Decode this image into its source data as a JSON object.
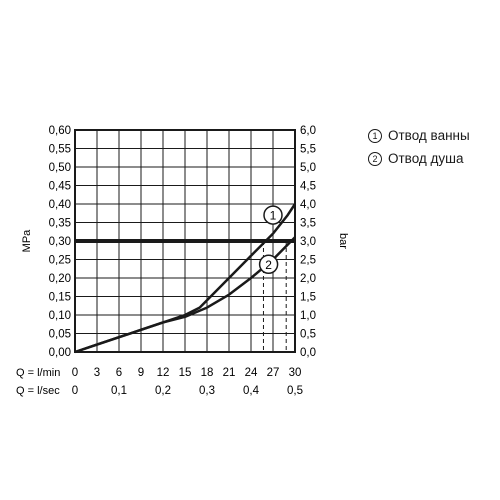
{
  "chart_data": {
    "type": "line",
    "left_axis": {
      "label": "MPa",
      "ticks": [
        "0,00",
        "0,05",
        "0,10",
        "0,15",
        "0,20",
        "0,25",
        "0,30",
        "0,35",
        "0,40",
        "0,45",
        "0,50",
        "0,55",
        "0,60"
      ],
      "range": [
        0,
        0.6
      ]
    },
    "right_axis": {
      "label": "bar",
      "ticks": [
        "0,0",
        "0,5",
        "1,0",
        "1,5",
        "2,0",
        "2,5",
        "3,0",
        "3,5",
        "4,0",
        "4,5",
        "5,0",
        "5,5",
        "6,0"
      ],
      "range": [
        0,
        6
      ]
    },
    "x_axis_lmin": {
      "label": "Q = l/min",
      "ticks": [
        "0",
        "3",
        "6",
        "9",
        "12",
        "15",
        "18",
        "21",
        "24",
        "27",
        "30"
      ],
      "range": [
        0,
        30
      ]
    },
    "x_axis_lsec": {
      "label": "Q = l/sec",
      "ticks": [
        {
          "value": 0,
          "label": "0"
        },
        {
          "value": 0.1,
          "label": "0,1"
        },
        {
          "value": 0.2,
          "label": "0,2"
        },
        {
          "value": 0.3,
          "label": "0,3"
        },
        {
          "value": 0.4,
          "label": "0,4"
        },
        {
          "value": 0.5,
          "label": "0,5"
        }
      ]
    },
    "grid": true,
    "series": [
      {
        "id": "1",
        "name": "Отвод ванны",
        "marker": "1",
        "x": [
          0,
          3,
          6,
          9,
          12,
          15,
          17,
          18,
          21,
          24,
          27,
          29,
          30
        ],
        "y": [
          0,
          0.02,
          0.04,
          0.06,
          0.08,
          0.1,
          0.12,
          0.14,
          0.2,
          0.26,
          0.32,
          0.37,
          0.4
        ],
        "marker_x": 27,
        "marker_y": 0.37,
        "drop_x": 25.7
      },
      {
        "id": "2",
        "name": "Отвод душа",
        "marker": "2",
        "x": [
          0,
          3,
          6,
          9,
          12,
          15,
          18,
          21,
          24,
          27,
          30
        ],
        "y": [
          0,
          0.02,
          0.04,
          0.06,
          0.08,
          0.095,
          0.12,
          0.155,
          0.2,
          0.25,
          0.31
        ],
        "marker_x": 26.4,
        "marker_y": 0.237,
        "drop_x": 28.8
      }
    ],
    "reference_line": {
      "value": 0.3,
      "label": "0,30"
    }
  }
}
